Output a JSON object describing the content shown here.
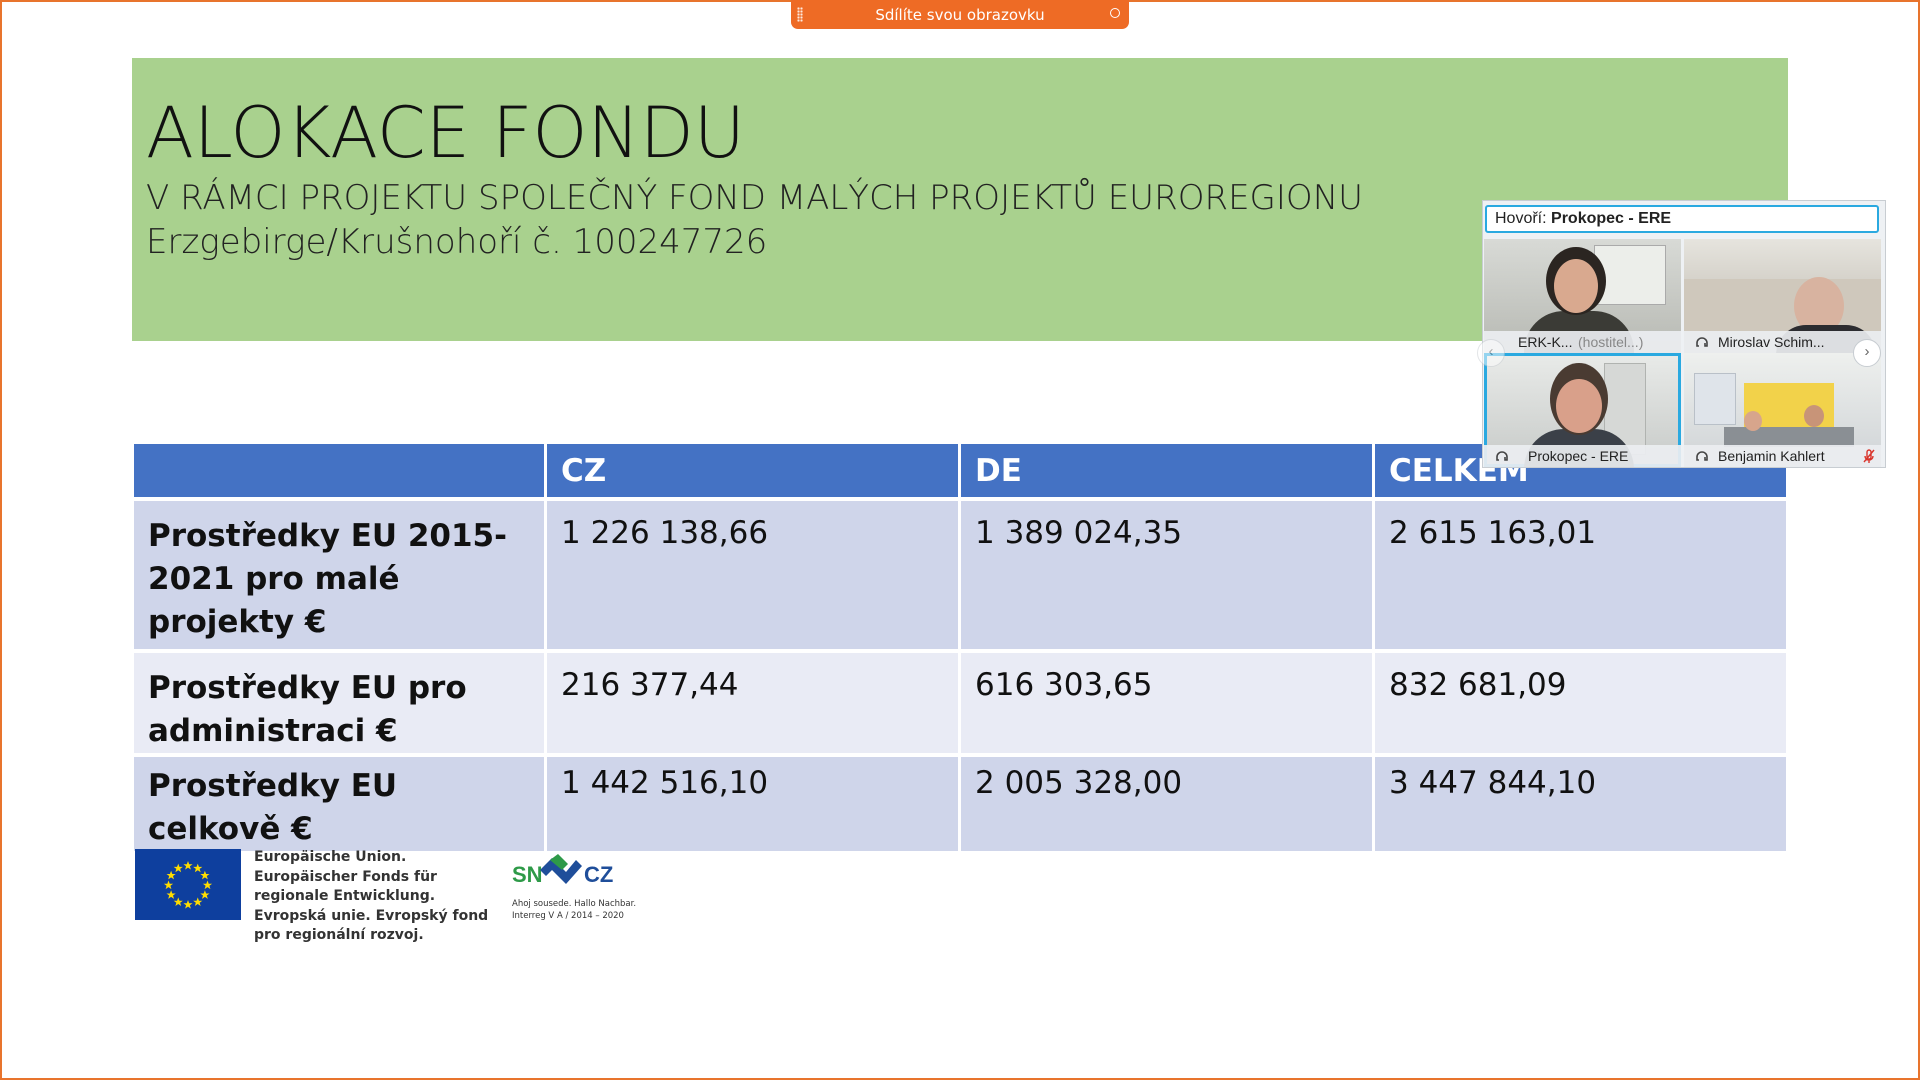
{
  "share_bar": {
    "label": "Sdílíte svou obrazovku",
    "grip_icon": "grip-dots-icon",
    "stop_icon": "stop-share-icon"
  },
  "slide": {
    "title": "ALOKACE FONDU",
    "subtitle": "V RÁMCI PROJEKTU SPOLEČNÝ FOND MALÝCH PROJEKTŮ EUROREGIONU Erzgebirge/Krušnohoří č. 100247726",
    "table": {
      "headers": [
        "",
        "CZ",
        "DE",
        "CELKEM"
      ],
      "rows": [
        {
          "label": "Prostředky EU 2015-2021 pro malé projekty €",
          "cz": "1 226 138,66",
          "de": "1 389 024,35",
          "celkem": "2 615 163,01"
        },
        {
          "label": "Prostředky EU pro administraci €",
          "cz": "216 377,44",
          "de": "616 303,65",
          "celkem": "832 681,09"
        },
        {
          "label": "Prostředky EU celkově €",
          "cz": "1 442 516,10",
          "de": "2 005 328,00",
          "celkem": "3 447 844,10"
        }
      ]
    },
    "logos": {
      "eu_text": "Europäische Union. Europäischer Fonds für regionale Entwicklung. Evropská unie. Evropský fond pro regionální rozvoj.",
      "sn": "SN",
      "cz": "CZ",
      "program_line1": "Ahoj sousede. Hallo Nachbar.",
      "program_line2": "Interreg V A / 2014 – 2020"
    }
  },
  "video_panel": {
    "speaker_label": "Hovoří:",
    "speaker_name": "Prokopec - ERE",
    "participants": [
      {
        "name": "ERK-K...",
        "role": "(hostitel...)"
      },
      {
        "name": "Miroslav Schim..."
      },
      {
        "name": "Prokopec - ERE"
      },
      {
        "name": "Benjamin Kahlert"
      }
    ],
    "prev_arrow": "‹",
    "next_arrow": "›"
  },
  "colors": {
    "header_green": "#a9d18e",
    "table_header": "#4472c4",
    "row_dark": "#cfd5ea",
    "row_light": "#e9ebf5",
    "share_orange": "#ee6b25"
  }
}
